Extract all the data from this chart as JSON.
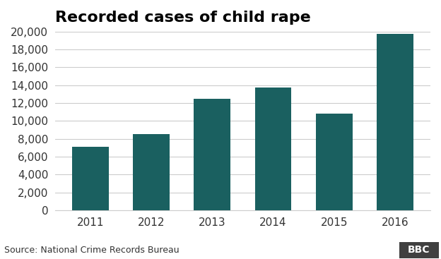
{
  "title": "Recorded cases of child rape",
  "categories": [
    "2011",
    "2012",
    "2013",
    "2014",
    "2015",
    "2016"
  ],
  "values": [
    7112,
    8541,
    12447,
    13766,
    10854,
    19765
  ],
  "bar_color": "#1a6060",
  "ylim": [
    0,
    20000
  ],
  "yticks": [
    0,
    2000,
    4000,
    6000,
    8000,
    10000,
    12000,
    14000,
    16000,
    18000,
    20000
  ],
  "source_text": "Source: National Crime Records Bureau",
  "bbc_text": "BBC",
  "title_fontsize": 16,
  "tick_fontsize": 11,
  "source_fontsize": 9,
  "bar_width": 0.6,
  "background_color": "#ffffff",
  "grid_color": "#cccccc",
  "footer_bg_color": "#e0e0e0",
  "bbc_box_color": "#404040"
}
